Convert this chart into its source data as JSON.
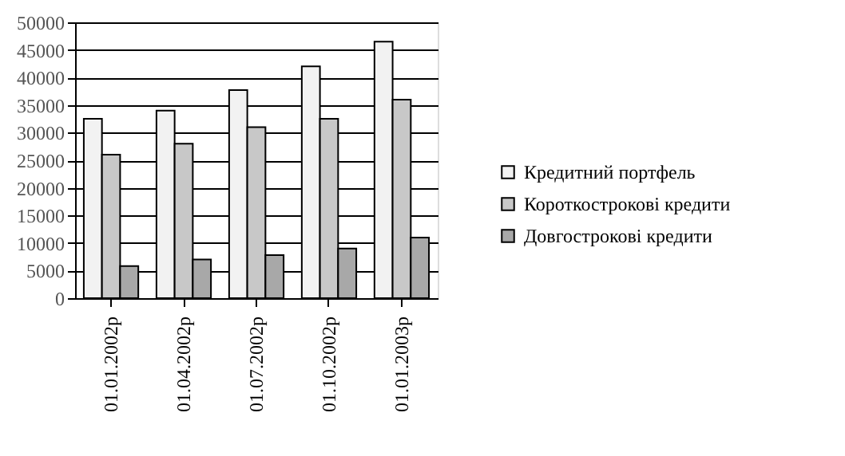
{
  "chart_data": {
    "type": "bar",
    "categories": [
      "01.01.2002р",
      "01.04.2002р",
      "01.07.2002р",
      "01.10.2002р",
      "01.01.2003р"
    ],
    "series": [
      {
        "name": "Кредитний портфель",
        "color": "#f2f2f2",
        "values": [
          32500,
          34000,
          37700,
          42000,
          46500
        ]
      },
      {
        "name": "Короткострокові кредити",
        "color": "#c8c8c8",
        "values": [
          26000,
          28000,
          31000,
          32500,
          36000
        ]
      },
      {
        "name": "Довгострокові кредити",
        "color": "#a8a8a8",
        "values": [
          5800,
          7000,
          7800,
          9000,
          11000
        ]
      }
    ],
    "ylim": [
      0,
      50000
    ],
    "yticks": [
      0,
      5000,
      10000,
      15000,
      20000,
      25000,
      30000,
      35000,
      40000,
      45000,
      50000
    ],
    "grid": "y",
    "legend": "right"
  }
}
